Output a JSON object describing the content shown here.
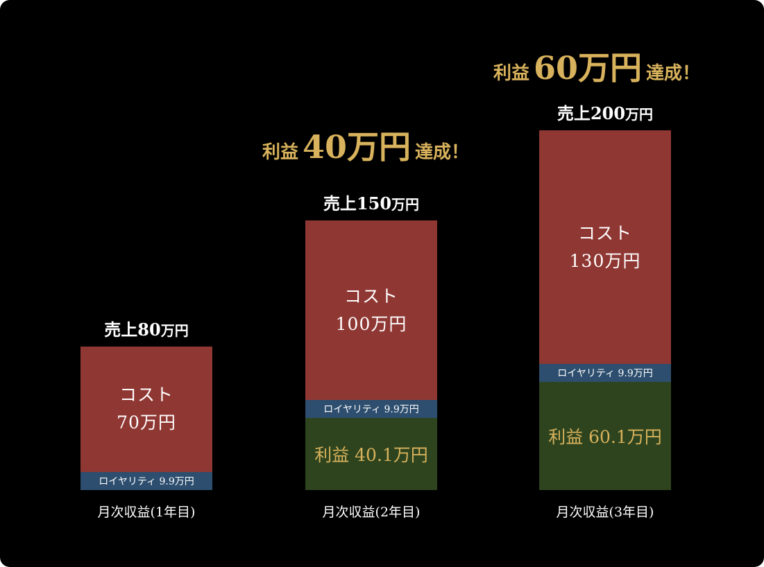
{
  "chart_data": {
    "type": "bar",
    "stacked": true,
    "title": "",
    "xlabel": "",
    "ylabel": "",
    "ylim": [
      0,
      200
    ],
    "categories": [
      "月次収益(1年目)",
      "月次収益(2年目)",
      "月次収益(3年目)"
    ],
    "series": [
      {
        "key": "profit",
        "color": "#2e441e",
        "values": [
          0,
          40.1,
          60.1
        ],
        "labels": [
          "",
          "利益 40.1万円",
          "利益 60.1万円"
        ]
      },
      {
        "key": "royalty",
        "color": "#2d4e6e",
        "values": [
          9.9,
          9.9,
          9.9
        ],
        "labels": [
          "ロイヤリティ 9.9万円",
          "ロイヤリティ 9.9万円",
          "ロイヤリティ 9.9万円"
        ]
      },
      {
        "key": "cost",
        "color": "#8f3733",
        "values": [
          70,
          100,
          130
        ],
        "labels": [
          {
            "name": "コスト",
            "amount": "70万円"
          },
          {
            "name": "コスト",
            "amount": "100万円"
          },
          {
            "name": "コスト",
            "amount": "130万円"
          }
        ]
      }
    ],
    "totals": [
      {
        "prefix": "売上",
        "number": "80",
        "unit": "万円"
      },
      {
        "prefix": "売上",
        "number": "150",
        "unit": "万円"
      },
      {
        "prefix": "売上",
        "number": "200",
        "unit": "万円"
      }
    ],
    "annotations": [
      {
        "bar_index": 1,
        "pre": "利益",
        "amount": "40万円",
        "post": "達成！"
      },
      {
        "bar_index": 2,
        "pre": "利益",
        "amount": "60万円",
        "post": "達成！"
      }
    ]
  },
  "colors": {
    "background": "#000000",
    "accent_gold": "#d8b25c",
    "text": "#ffffff"
  }
}
